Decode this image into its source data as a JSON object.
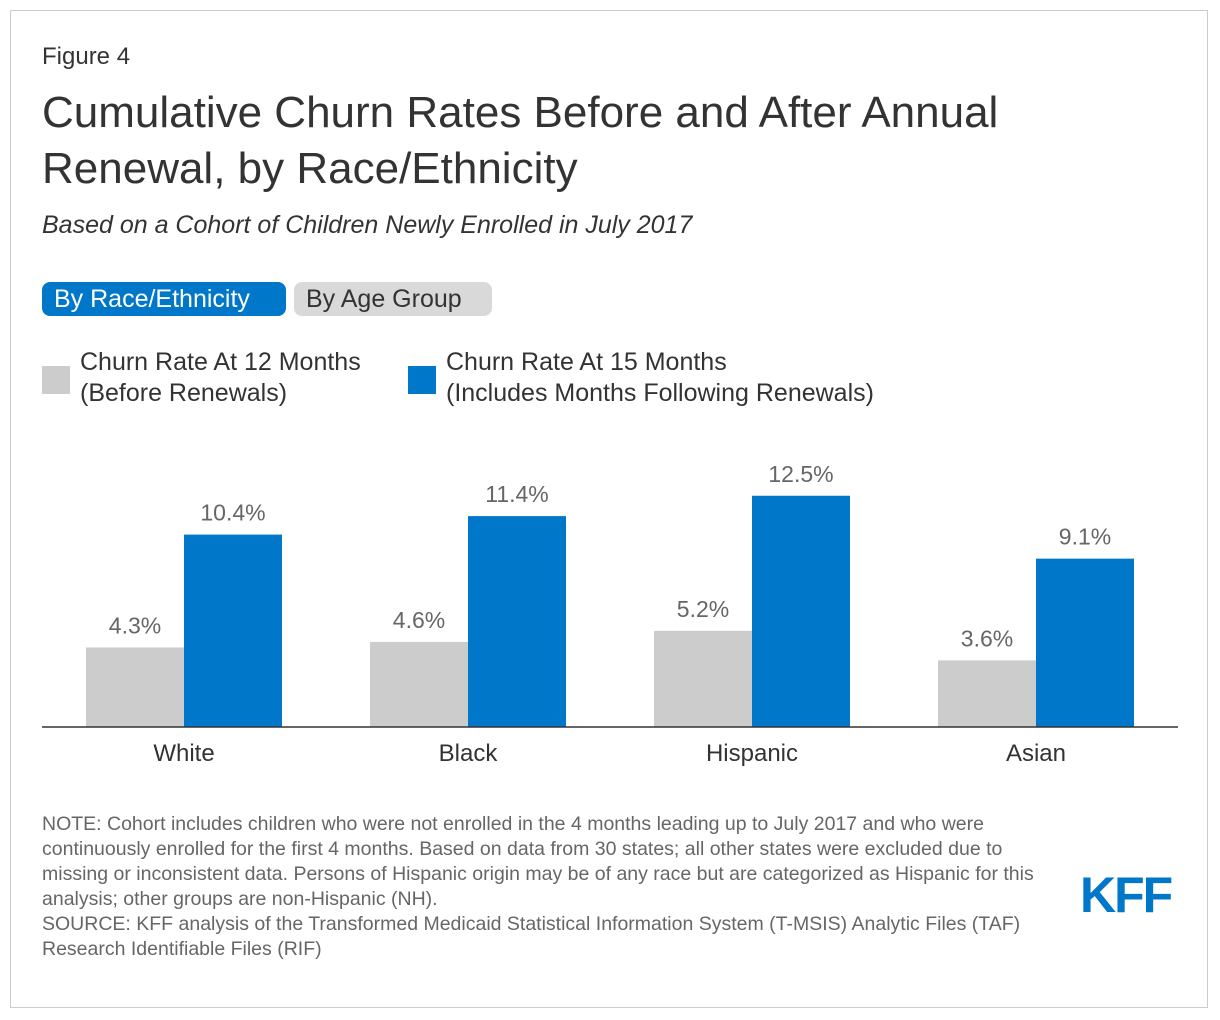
{
  "figure_label": "Figure 4",
  "title": "Cumulative Churn Rates Before and After Annual Renewal, by Race/Ethnicity",
  "subtitle": "Based on a Cohort of Children Newly Enrolled in July 2017",
  "toggles": {
    "active": "By Race/Ethnicity",
    "inactive": "By Age Group"
  },
  "colors": {
    "accent": "#0077c8",
    "gray_bar": "#cccccc",
    "label_text": "#666666"
  },
  "chart_data": {
    "type": "bar",
    "categories": [
      "White",
      "Black",
      "Hispanic",
      "Asian"
    ],
    "series": [
      {
        "name": "Churn Rate At 12 Months (Before Renewals)",
        "legend_line1": "Churn Rate At 12 Months",
        "legend_line2": "(Before Renewals)",
        "color": "#cccccc",
        "values": [
          4.3,
          4.6,
          5.2,
          3.6
        ],
        "labels": [
          "4.3%",
          "4.6%",
          "5.2%",
          "3.6%"
        ]
      },
      {
        "name": "Churn Rate At 15 Months (Includes Months Following Renewals)",
        "legend_line1": "Churn Rate At 15 Months",
        "legend_line2": "(Includes Months Following Renewals)",
        "color": "#0077c8",
        "values": [
          10.4,
          11.4,
          12.5,
          9.1
        ],
        "labels": [
          "10.4%",
          "11.4%",
          "12.5%",
          "9.1%"
        ]
      }
    ],
    "title": "Cumulative Churn Rates Before and After Annual Renewal, by Race/Ethnicity",
    "xlabel": "",
    "ylabel": "",
    "ylim": [
      0,
      12.5
    ],
    "grid": false,
    "legend": "top-left"
  },
  "note": "NOTE: Cohort includes children who were not enrolled in the 4 months leading up to July 2017 and who were continuously enrolled for the first 4 months. Based on data from 30 states; all other states were excluded due to missing or inconsistent data. Persons of Hispanic origin may be of any race but are categorized as Hispanic for this analysis; other groups are non-Hispanic (NH).",
  "source": "SOURCE: KFF analysis of the Transformed Medicaid Statistical Information System (T-MSIS) Analytic Files (TAF) Research Identifiable Files (RIF)",
  "logo": "KFF"
}
